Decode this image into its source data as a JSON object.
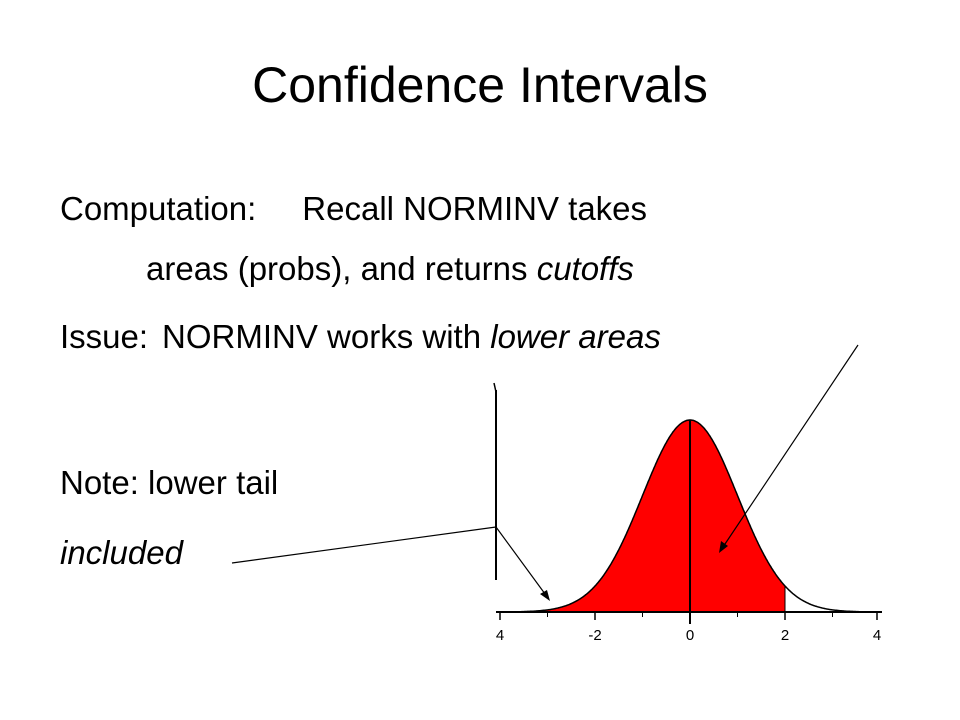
{
  "slide": {
    "title": "Confidence Intervals",
    "computation_label": "Computation:",
    "computation_text": "Recall NORMINV takes",
    "computation_cont_a": "areas (probs), and returns ",
    "computation_cont_b": "cutoffs",
    "issue_label": "Issue:",
    "issue_text_a": "NORMINV works with ",
    "issue_text_b": "lower areas",
    "note_text": "Note: lower tail",
    "note_emph": "included"
  },
  "chart_data": {
    "type": "area",
    "distribution": "standard normal",
    "shaded_from": -4,
    "shaded_to": 2,
    "x_ticks": [
      "4",
      "-2",
      "0",
      "2",
      "4"
    ],
    "xlim": [
      -4,
      4
    ],
    "fill_color": "#ff0000",
    "curve_color": "#000000"
  }
}
